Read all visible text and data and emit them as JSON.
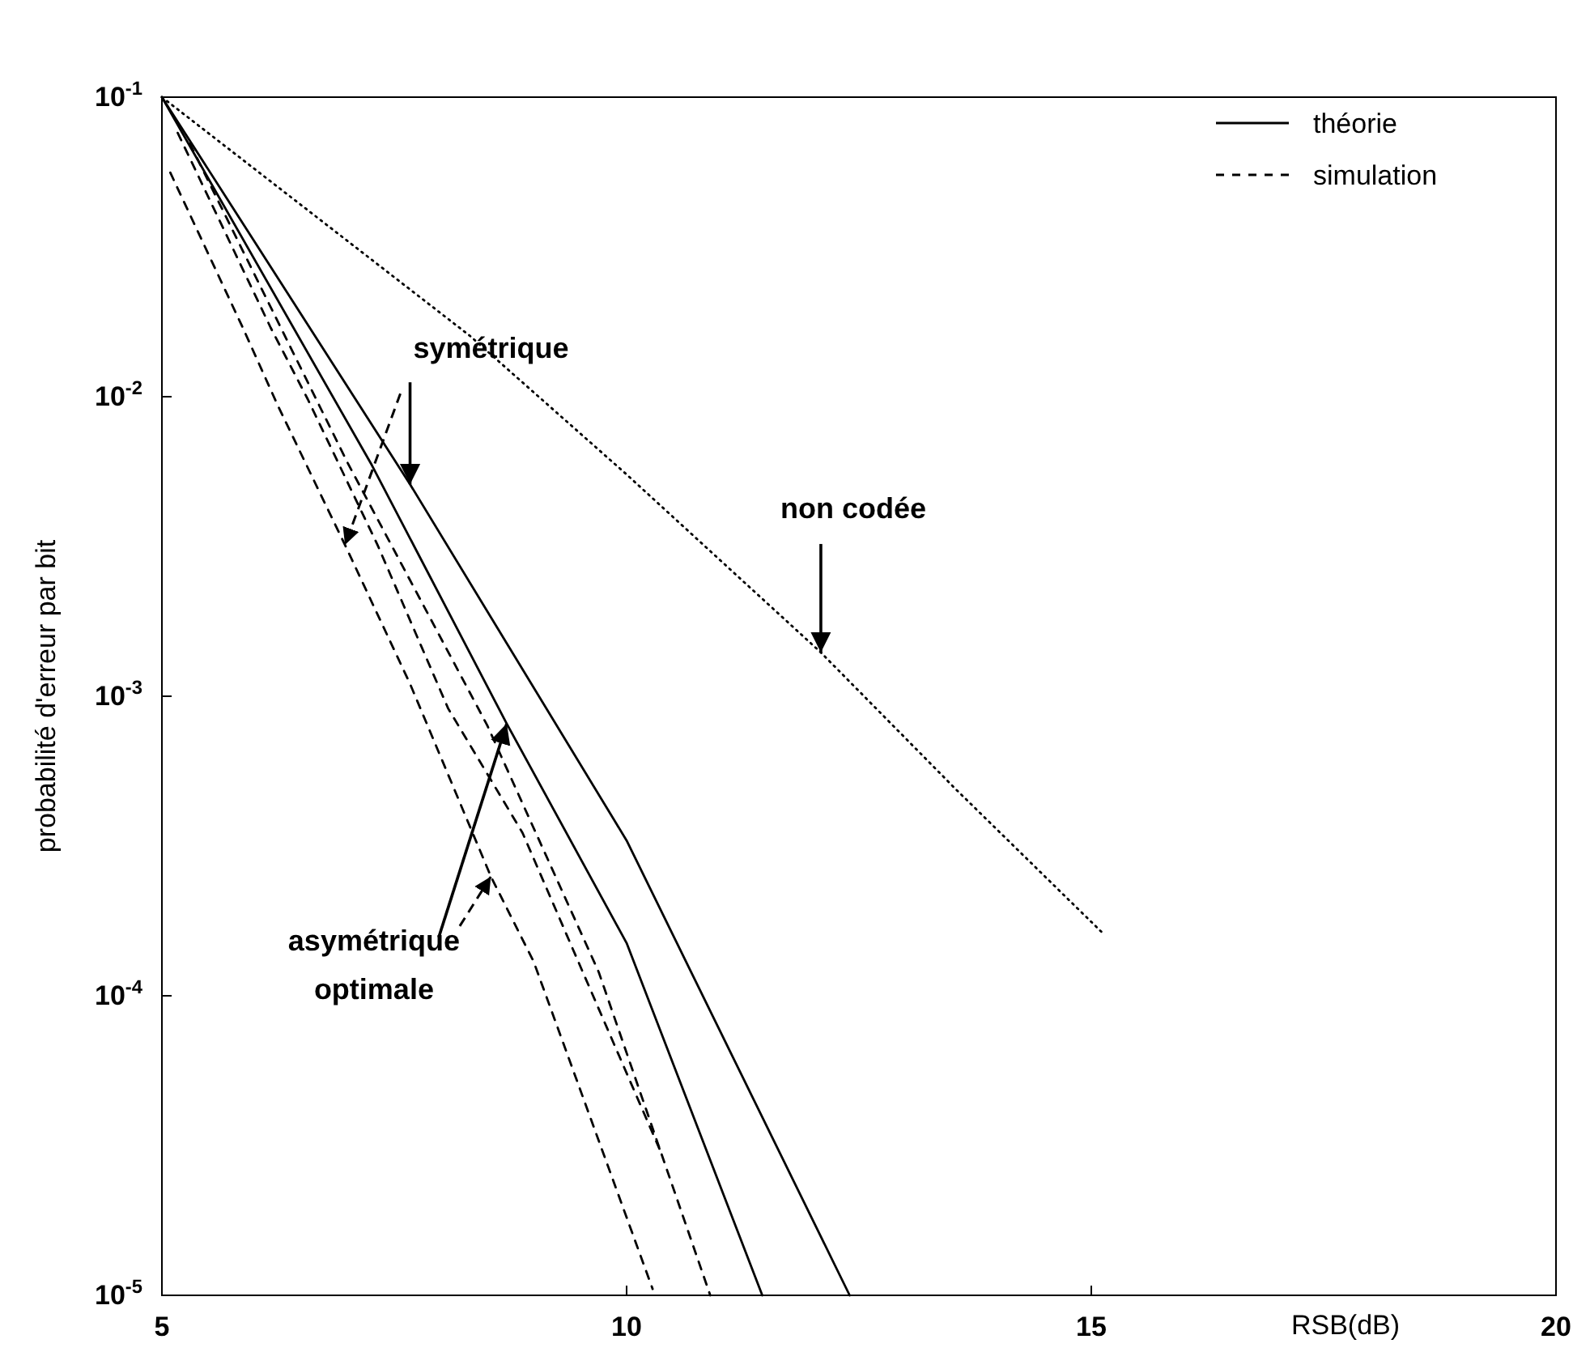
{
  "chart_data": {
    "type": "line",
    "xlabel": "RSB(dB)",
    "ylabel": "probabilité d'erreur par bit",
    "xlim": [
      5,
      20
    ],
    "xticks": [
      5,
      10,
      15,
      20
    ],
    "ylim": [
      1e-05,
      0.1
    ],
    "yticks": [
      {
        "value": 0.1,
        "label": "10$^{-1}$"
      },
      {
        "value": 0.01,
        "label": "10$^{-2}$"
      },
      {
        "value": 0.001,
        "label": "10$^{-3}$"
      },
      {
        "value": 0.0001,
        "label": "10$^{-4}$"
      },
      {
        "value": 1e-05,
        "label": "10$^{-5}$"
      }
    ],
    "log": "y",
    "grid": false,
    "legend": "top right",
    "marker": "none",
    "series": [
      {
        "name": "théorie",
        "color": "#000000",
        "line_style": "solid",
        "x": [
          5,
          7.67,
          10,
          12.4
        ],
        "values": [
          0.1,
          0.0051,
          0.00033,
          1e-05
        ]
      },
      {
        "color": "#000000",
        "line_style": "solid",
        "x": [
          5,
          7.26,
          8.71,
          10,
          11.46
        ],
        "values": [
          0.1,
          0.0059,
          0.00081,
          0.00015,
          1e-05
        ]
      },
      {
        "name": "simulation",
        "color": "#000000",
        "line_style": "dashed",
        "x": [
          5.09,
          5.87,
          6.25,
          6.97,
          7.67,
          8.54,
          9,
          10.28
        ],
        "values": [
          0.056,
          0.017,
          0.0093,
          0.0032,
          0.0011,
          0.00025,
          0.00013,
          1.05e-05
        ]
      },
      {
        "color": "#000000",
        "line_style": "dashed",
        "x": [
          5.17,
          6.17,
          6.57,
          7.32,
          8.08,
          8.88,
          9.48,
          10.37
        ],
        "values": [
          0.076,
          0.017,
          0.0098,
          0.0032,
          0.00091,
          0.00035,
          0.00013,
          3e-05
        ]
      },
      {
        "color": "#000000",
        "line_style": "dashed",
        "x": [
          5.3,
          7,
          8.5,
          9.7,
          10.9
        ],
        "values": [
          0.07,
          0.006,
          0.0008,
          0.00012,
          1e-05
        ]
      },
      {
        "color": "#000000",
        "line_style": "dotted",
        "x": [
          5,
          8.31,
          10,
          12.09,
          13.54,
          15.14
        ],
        "values": [
          0.1,
          0.016,
          0.0055,
          0.0014,
          0.00049,
          0.00016
        ]
      }
    ],
    "annotations": [
      {
        "text": "symétrique",
        "x": 7.67,
        "y": 0.0051
      },
      {
        "text": "non codée",
        "x": 12.09,
        "y": 0.0014
      },
      {
        "text": "asymétrique\noptimale",
        "x": 8.71,
        "y": 0.00081
      }
    ]
  }
}
